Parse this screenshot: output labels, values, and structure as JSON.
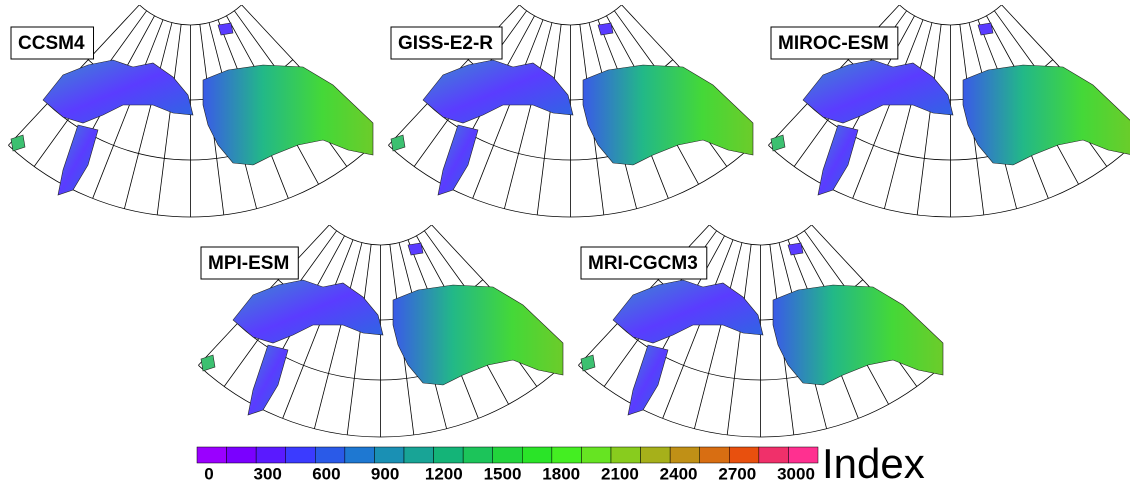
{
  "panels": [
    {
      "title": "CCSM4"
    },
    {
      "title": "GISS-E2-R"
    },
    {
      "title": "MIROC-ESM"
    },
    {
      "title": "MPI-ESM"
    },
    {
      "title": "MRI-CGCM3"
    }
  ],
  "colorbar": {
    "colors": [
      "#9a00ff",
      "#7a00ff",
      "#5a1aff",
      "#3b3bff",
      "#2a5ae8",
      "#1e78d2",
      "#1a90b4",
      "#18a496",
      "#14b478",
      "#1cc45a",
      "#22d43c",
      "#2ae428",
      "#44ee22",
      "#66e422",
      "#88cc1e",
      "#a6b01a",
      "#c09016",
      "#d86e12",
      "#e8500e",
      "#f0306a",
      "#ff3090"
    ],
    "ticks": [
      0,
      300,
      600,
      900,
      1200,
      1500,
      1800,
      2100,
      2400,
      2700,
      3000
    ],
    "label": "Index"
  }
}
